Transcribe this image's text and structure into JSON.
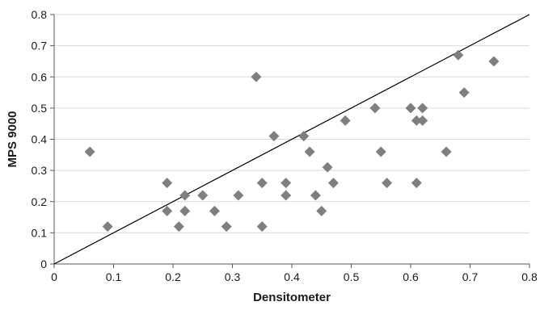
{
  "chart_data": {
    "type": "scatter",
    "title": "",
    "xlabel": "Densitometer",
    "ylabel": "MPS 9000",
    "xlim": [
      0,
      0.8
    ],
    "ylim": [
      0,
      0.8
    ],
    "x_ticks": [
      "0",
      "0.1",
      "0.2",
      "0.3",
      "0.4",
      "0.5",
      "0.6",
      "0.7",
      "0.8"
    ],
    "y_ticks": [
      "0",
      "0.1",
      "0.2",
      "0.3",
      "0.4",
      "0.5",
      "0.6",
      "0.7",
      "0.8"
    ],
    "grid": "horizontal",
    "legend": "none",
    "marker": "diamond",
    "marker_color": "#7f7f7f",
    "reference_line": {
      "from": [
        0,
        0
      ],
      "to": [
        0.8,
        0.8
      ],
      "color": "#000000"
    },
    "series": [
      {
        "points": [
          [
            0.06,
            0.36
          ],
          [
            0.09,
            0.12
          ],
          [
            0.19,
            0.26
          ],
          [
            0.19,
            0.17
          ],
          [
            0.21,
            0.12
          ],
          [
            0.22,
            0.22
          ],
          [
            0.22,
            0.17
          ],
          [
            0.25,
            0.22
          ],
          [
            0.27,
            0.17
          ],
          [
            0.29,
            0.12
          ],
          [
            0.31,
            0.22
          ],
          [
            0.34,
            0.6
          ],
          [
            0.35,
            0.26
          ],
          [
            0.35,
            0.12
          ],
          [
            0.37,
            0.41
          ],
          [
            0.39,
            0.26
          ],
          [
            0.39,
            0.22
          ],
          [
            0.42,
            0.41
          ],
          [
            0.43,
            0.36
          ],
          [
            0.44,
            0.22
          ],
          [
            0.45,
            0.17
          ],
          [
            0.46,
            0.31
          ],
          [
            0.47,
            0.26
          ],
          [
            0.49,
            0.46
          ],
          [
            0.54,
            0.5
          ],
          [
            0.55,
            0.36
          ],
          [
            0.56,
            0.26
          ],
          [
            0.6,
            0.5
          ],
          [
            0.61,
            0.46
          ],
          [
            0.61,
            0.26
          ],
          [
            0.62,
            0.5
          ],
          [
            0.62,
            0.46
          ],
          [
            0.66,
            0.36
          ],
          [
            0.68,
            0.67
          ],
          [
            0.69,
            0.55
          ],
          [
            0.74,
            0.65
          ]
        ]
      }
    ]
  }
}
